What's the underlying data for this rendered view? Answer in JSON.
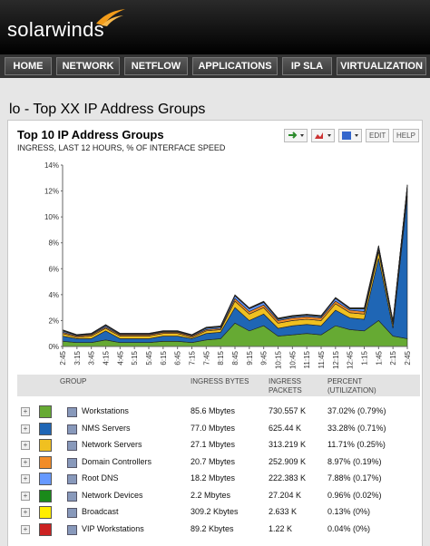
{
  "header": {
    "logo": "solarwinds"
  },
  "nav": [
    "HOME",
    "NETWORK",
    "NETFLOW",
    "APPLICATIONS",
    "IP SLA",
    "VIRTUALIZATION"
  ],
  "page_title": "lo - Top XX IP Address Groups",
  "panel": {
    "title": "Top 10 IP Address Groups",
    "subtitle": "INGRESS, LAST 12 HOURS, % OF INTERFACE SPEED",
    "buttons": [
      "EDIT",
      "HELP"
    ]
  },
  "chart_data": {
    "type": "stacked-area",
    "categories": [
      "2:45",
      "3:15",
      "3:45",
      "4:15",
      "4:45",
      "5:15",
      "5:45",
      "6:15",
      "6:45",
      "7:15",
      "7:45",
      "8:15",
      "8:45",
      "9:15",
      "9:45",
      "10:15",
      "10:45",
      "11:15",
      "11:45",
      "12:15",
      "12:45",
      "1:15",
      "1:45",
      "2:15",
      "2:45"
    ],
    "ylim": [
      0,
      14
    ],
    "yticks": [
      {
        "value": 0,
        "label": "0%"
      },
      {
        "value": 2,
        "label": "2%"
      },
      {
        "value": 4,
        "label": "4%"
      },
      {
        "value": 6,
        "label": "6%"
      },
      {
        "value": 8,
        "label": "8%"
      },
      {
        "value": 10,
        "label": "10%"
      },
      {
        "value": 12,
        "label": "12%"
      },
      {
        "value": 14,
        "label": "14%"
      }
    ],
    "grid": false,
    "series": [
      {
        "name": "Workstations",
        "color": "#66aa33",
        "values": [
          0.4,
          0.3,
          0.3,
          0.5,
          0.3,
          0.3,
          0.3,
          0.4,
          0.4,
          0.3,
          0.5,
          0.6,
          1.8,
          1.2,
          1.6,
          0.8,
          0.9,
          1.0,
          0.9,
          1.6,
          1.3,
          1.2,
          2.0,
          0.8,
          0.6
        ]
      },
      {
        "name": "NMS Servers",
        "color": "#1f66b5",
        "values": [
          0.4,
          0.3,
          0.3,
          0.7,
          0.3,
          0.3,
          0.3,
          0.4,
          0.4,
          0.3,
          0.5,
          0.5,
          1.2,
          0.8,
          0.9,
          0.6,
          0.7,
          0.7,
          0.7,
          1.2,
          0.9,
          0.9,
          4.8,
          0.6,
          11.0
        ]
      },
      {
        "name": "Network Servers",
        "color": "#f0c020",
        "values": [
          0.2,
          0.1,
          0.2,
          0.2,
          0.2,
          0.2,
          0.2,
          0.2,
          0.2,
          0.1,
          0.2,
          0.2,
          0.5,
          0.5,
          0.5,
          0.4,
          0.4,
          0.4,
          0.4,
          0.5,
          0.4,
          0.4,
          0.5,
          0.3,
          0.4
        ]
      },
      {
        "name": "Domain Controllers",
        "color": "#f28c28",
        "values": [
          0.1,
          0.1,
          0.1,
          0.1,
          0.1,
          0.1,
          0.1,
          0.1,
          0.1,
          0.1,
          0.1,
          0.1,
          0.2,
          0.2,
          0.2,
          0.2,
          0.2,
          0.2,
          0.2,
          0.2,
          0.2,
          0.2,
          0.2,
          0.1,
          0.2
        ]
      },
      {
        "name": "Root DNS",
        "color": "#6699ff",
        "values": [
          0.1,
          0.05,
          0.05,
          0.1,
          0.05,
          0.05,
          0.05,
          0.05,
          0.05,
          0.05,
          0.1,
          0.1,
          0.2,
          0.2,
          0.2,
          0.1,
          0.1,
          0.1,
          0.1,
          0.2,
          0.1,
          0.2,
          0.2,
          0.1,
          0.2
        ]
      },
      {
        "name": "Network Devices",
        "color": "#1a8a1a",
        "values": [
          0.05,
          0.03,
          0.03,
          0.05,
          0.03,
          0.03,
          0.03,
          0.03,
          0.03,
          0.03,
          0.05,
          0.05,
          0.05,
          0.05,
          0.05,
          0.05,
          0.05,
          0.05,
          0.05,
          0.05,
          0.05,
          0.05,
          0.05,
          0.05,
          0.05
        ]
      },
      {
        "name": "Broadcast",
        "color": "#ffee00",
        "values": [
          0.02,
          0.02,
          0.02,
          0.02,
          0.02,
          0.02,
          0.02,
          0.02,
          0.02,
          0.02,
          0.02,
          0.02,
          0.02,
          0.02,
          0.02,
          0.02,
          0.02,
          0.02,
          0.02,
          0.02,
          0.02,
          0.02,
          0.02,
          0.02,
          0.02
        ]
      },
      {
        "name": "VIP Workstations",
        "color": "#cc2222",
        "values": [
          0.02,
          0.02,
          0.02,
          0.02,
          0.02,
          0.02,
          0.02,
          0.02,
          0.02,
          0.02,
          0.02,
          0.02,
          0.02,
          0.02,
          0.02,
          0.02,
          0.02,
          0.02,
          0.02,
          0.02,
          0.02,
          0.02,
          0.02,
          0.02,
          0.02
        ]
      }
    ]
  },
  "table": {
    "headers": [
      "GROUP",
      "INGRESS BYTES",
      "INGRESS PACKETS",
      "PERCENT (UTILIZATION)"
    ],
    "rows": [
      [
        "85.6 Mbytes",
        "730.557 K",
        "37.02% (0.79%)"
      ],
      [
        "77.0 Mbytes",
        "625.44 K",
        "33.28% (0.71%)"
      ],
      [
        "27.1 Mbytes",
        "313.219 K",
        "11.71% (0.25%)"
      ],
      [
        "20.7 Mbytes",
        "252.909 K",
        "8.97% (0.19%)"
      ],
      [
        "18.2 Mbytes",
        "222.383 K",
        "7.88% (0.17%)"
      ],
      [
        "2.2 Mbytes",
        "27.204 K",
        "0.96% (0.02%)"
      ],
      [
        "309.2 Kbytes",
        "2.633 K",
        "0.13% (0%)"
      ],
      [
        "89.2 Kbytes",
        "1.22 K",
        "0.04% (0%)"
      ]
    ]
  }
}
